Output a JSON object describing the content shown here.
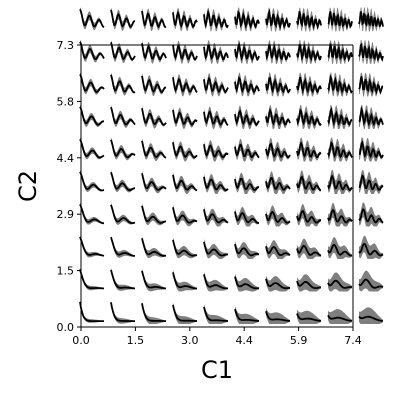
{
  "chart_data": {
    "type": "grid-of-line-glyphs",
    "xlabel": "C1",
    "ylabel": "C2",
    "xlim": [
      0.0,
      7.4
    ],
    "ylim": [
      0.0,
      7.3
    ],
    "x_tick_labels": [
      "0.0",
      "1.5",
      "3.0",
      "4.4",
      "5.9",
      "7.4"
    ],
    "y_tick_labels": [
      "0.0",
      "1.5",
      "2.9",
      "4.4",
      "5.8",
      "7.3"
    ],
    "x_ticks": [
      0.0,
      1.48,
      2.96,
      4.44,
      5.92,
      7.4
    ],
    "y_ticks": [
      0.0,
      1.46,
      2.92,
      4.38,
      5.84,
      7.3
    ],
    "grid_cols": 10,
    "grid_rows": 10,
    "grid": false,
    "legend": "none",
    "line_color": "#000000",
    "band_color": "#7f7f7f",
    "glyph_description": "each cell shows a mean curve (black) with a grey uncertainty band; curves near C2=0 decay quickly, curves at higher C2 and higher C1 oscillate"
  }
}
